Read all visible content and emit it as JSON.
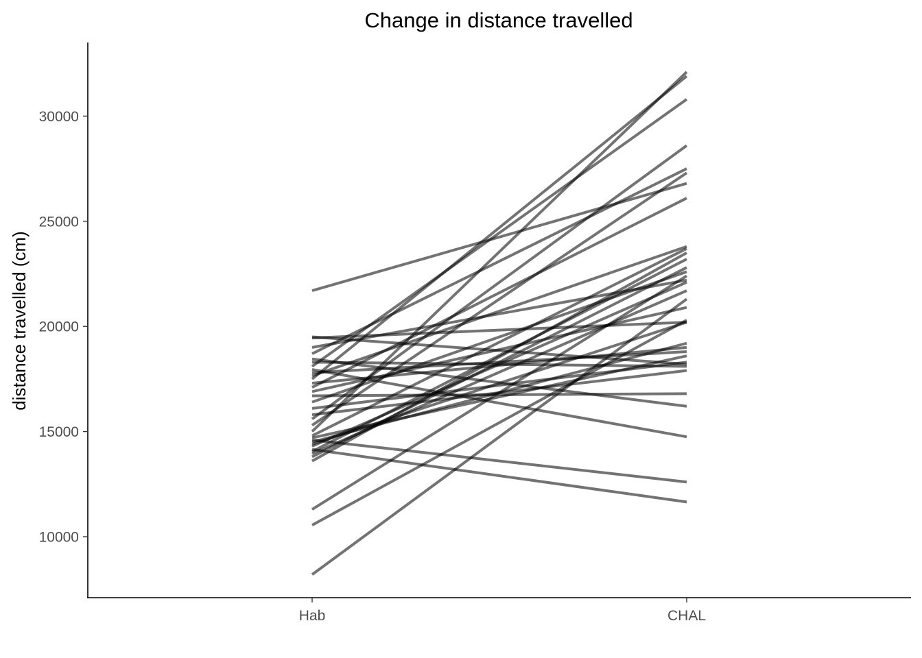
{
  "chart_data": {
    "type": "line",
    "title": "Change in distance travelled",
    "xlabel": "",
    "ylabel": "distance travelled (cm)",
    "categories": [
      "Hab",
      "CHAL"
    ],
    "y_ticks": [
      10000,
      15000,
      20000,
      25000,
      30000
    ],
    "ylim": [
      7100,
      33500
    ],
    "grid": false,
    "legend": "none",
    "line_color": "#000000",
    "series": [
      {
        "values": [
          8200,
          21300
        ]
      },
      {
        "values": [
          10550,
          20300
        ]
      },
      {
        "values": [
          11300,
          22400
        ]
      },
      {
        "values": [
          13600,
          23500
        ]
      },
      {
        "values": [
          13800,
          22800
        ]
      },
      {
        "values": [
          13950,
          21700
        ]
      },
      {
        "values": [
          14050,
          23200
        ]
      },
      {
        "values": [
          14150,
          11650
        ]
      },
      {
        "values": [
          14300,
          22100
        ]
      },
      {
        "values": [
          14400,
          20200
        ]
      },
      {
        "values": [
          14500,
          19200
        ]
      },
      {
        "values": [
          14600,
          12600
        ]
      },
      {
        "values": [
          14700,
          18600
        ]
      },
      {
        "values": [
          14800,
          23700
        ]
      },
      {
        "values": [
          15000,
          32100
        ]
      },
      {
        "values": [
          15300,
          27300
        ]
      },
      {
        "values": [
          15600,
          28600
        ]
      },
      {
        "values": [
          15800,
          17900
        ]
      },
      {
        "values": [
          16100,
          18300
        ]
      },
      {
        "values": [
          16400,
          22600
        ]
      },
      {
        "values": [
          16700,
          16800
        ]
      },
      {
        "values": [
          16900,
          20900
        ]
      },
      {
        "values": [
          17100,
          26100
        ]
      },
      {
        "values": [
          17300,
          19000
        ]
      },
      {
        "values": [
          17500,
          31900
        ]
      },
      {
        "values": [
          17650,
          23800
        ]
      },
      {
        "values": [
          17800,
          18800
        ]
      },
      {
        "values": [
          17950,
          14750
        ]
      },
      {
        "values": [
          18100,
          30800
        ]
      },
      {
        "values": [
          18300,
          18100
        ]
      },
      {
        "values": [
          18450,
          16200
        ]
      },
      {
        "values": [
          18700,
          27500
        ]
      },
      {
        "values": [
          19000,
          22200
        ]
      },
      {
        "values": [
          19450,
          20200
        ]
      },
      {
        "values": [
          19500,
          18200
        ]
      },
      {
        "values": [
          21700,
          26800
        ]
      }
    ]
  }
}
